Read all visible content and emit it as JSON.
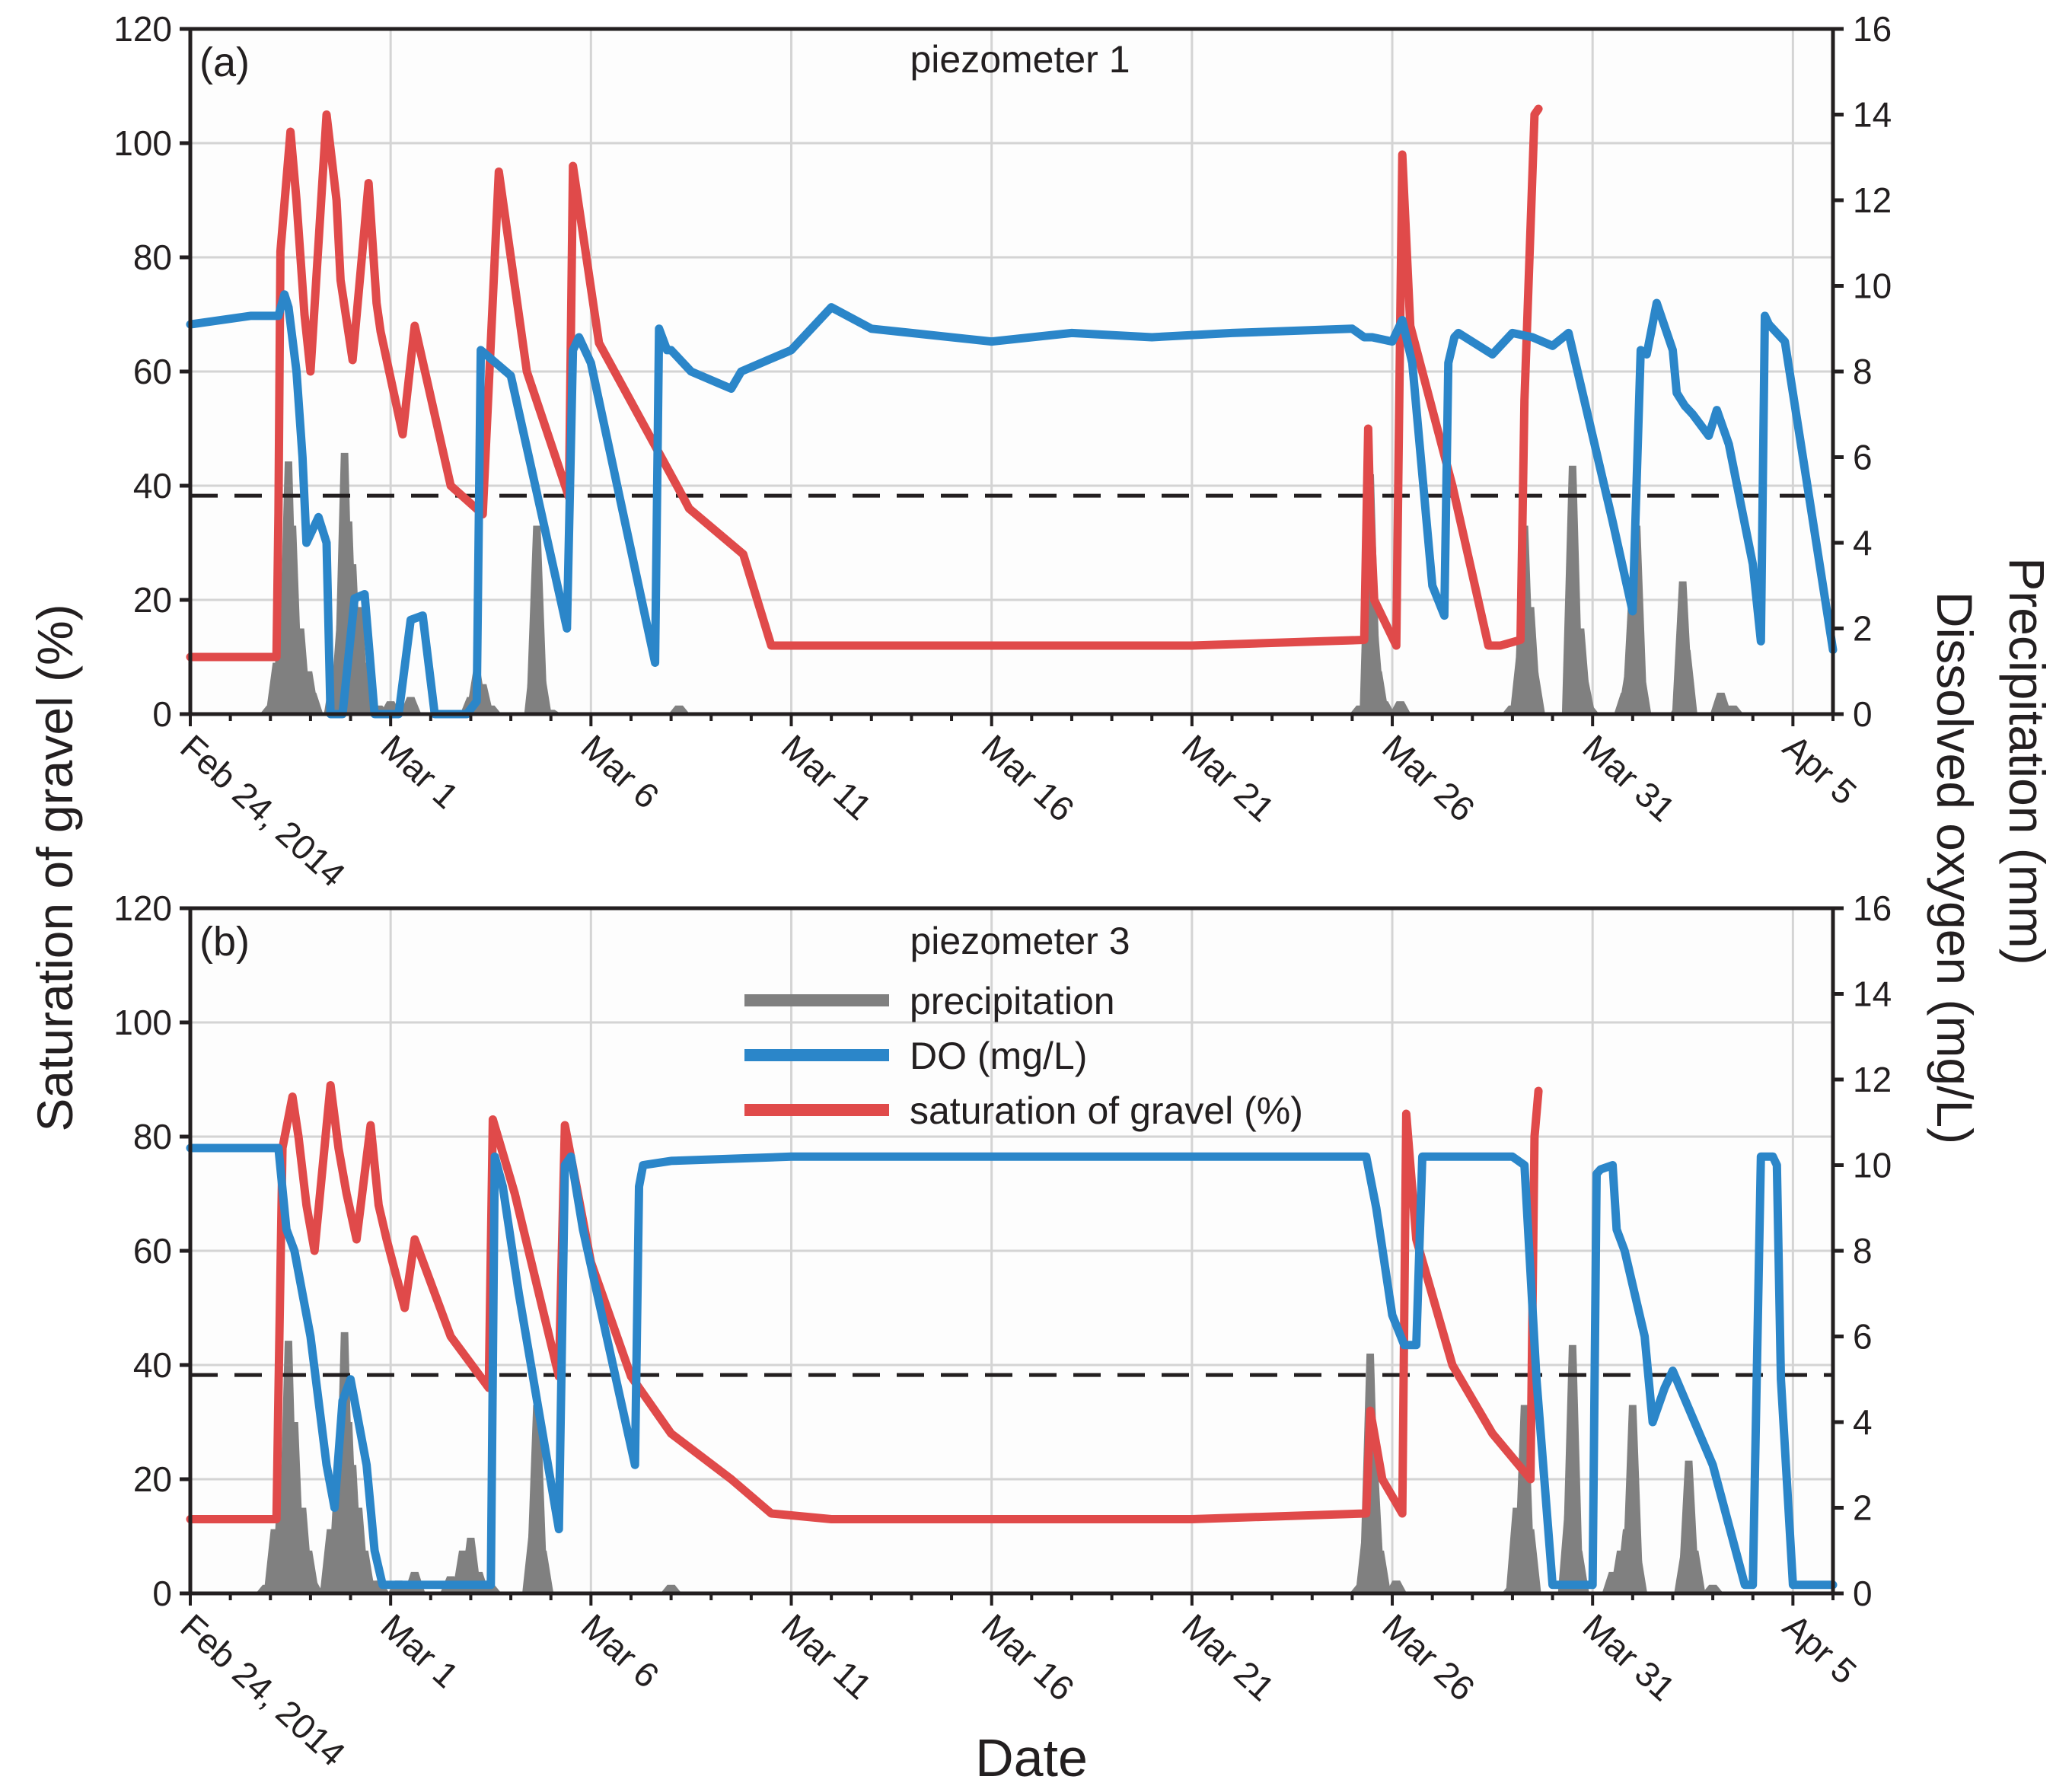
{
  "figure": {
    "xlabel": "Date",
    "ylabel_left": "Saturation of gravel (%)",
    "ylabel_right_outer": "Precipitation (mm)",
    "ylabel_right_inner": "Dissolved oxygen (mg/L)",
    "legend": {
      "precipitation": "precipitation",
      "do": "DO (mg/L)",
      "saturation": "saturation of gravel (%)"
    },
    "colors": {
      "precipitation": "#808080",
      "do": "#2b86c9",
      "saturation": "#e04a4a",
      "grid": "#d4d4d4",
      "axis": "#231f20",
      "plot_bg": "#fdfdfd"
    },
    "x_ticks": [
      "Feb 24, 2014",
      "Mar 1",
      "Mar 6",
      "Mar 11",
      "Mar 16",
      "Mar 21",
      "Mar 26",
      "Mar 31",
      "Apr 5"
    ],
    "y_left_ticks": [
      "0",
      "20",
      "40",
      "60",
      "80",
      "100",
      "120"
    ],
    "y_right_ticks": [
      "0",
      "2",
      "4",
      "6",
      "8",
      "10",
      "12",
      "14",
      "16"
    ]
  },
  "chart_data": [
    {
      "type": "line",
      "panel": "(a)",
      "title": "piezometer 1",
      "xlabel": "Date",
      "x_unit": "days since Feb 24, 2014",
      "xlim": [
        0,
        41
      ],
      "ylabel": "Saturation of gravel (%)",
      "ylim": [
        0,
        120
      ],
      "ylabel_right": "Precipitation (mm) / Dissolved oxygen (mg/L)",
      "ylim_right": [
        0,
        16
      ],
      "do_threshold_mg_per_L": 5.1,
      "series": [
        {
          "name": "saturation of gravel (%)",
          "axis": "left",
          "x": [
            0,
            2.15,
            2.2,
            2.25,
            2.5,
            2.65,
            2.85,
            3.0,
            3.4,
            3.65,
            3.75,
            4.05,
            4.45,
            4.65,
            4.75,
            5.3,
            5.6,
            6.5,
            7.3,
            7.7,
            8.4,
            9.45,
            9.55,
            10.2,
            12.3,
            12.45,
            13.8,
            14.5,
            16,
            20,
            25,
            29.3,
            29.4,
            29.45,
            29.55,
            30.1,
            30.25,
            30.45,
            31.5,
            32.4,
            32.7,
            33.2,
            33.3,
            33.55,
            33.65
          ],
          "values": [
            10,
            10,
            35,
            81,
            102,
            90,
            70,
            60,
            105,
            90,
            76,
            62,
            93,
            72,
            67,
            49,
            68,
            40,
            35,
            95,
            60,
            38,
            96,
            65,
            38,
            36,
            28,
            12,
            12,
            12,
            12,
            13,
            50,
            35,
            20,
            12,
            98,
            68,
            40,
            12,
            12,
            13,
            55,
            105,
            106
          ]
        },
        {
          "name": "DO (mg/L)",
          "axis": "right",
          "x": [
            0,
            1.5,
            2.2,
            2.35,
            2.45,
            2.65,
            2.8,
            2.9,
            3.2,
            3.4,
            3.5,
            3.8,
            4.1,
            4.35,
            4.6,
            5.2,
            5.5,
            5.8,
            6.1,
            6.9,
            7.15,
            7.25,
            8.0,
            9.4,
            9.55,
            9.7,
            10.0,
            11.6,
            11.7,
            11.9,
            12.0,
            12.5,
            13.5,
            13.75,
            14.5,
            15.0,
            16.0,
            17.0,
            18.0,
            20.0,
            22.0,
            24.0,
            26.0,
            29.0,
            29.3,
            29.5,
            30.0,
            30.25,
            30.5,
            31.0,
            31.3,
            31.4,
            31.55,
            31.65,
            32.5,
            33.0,
            33.5,
            34.0,
            34.4,
            35.0,
            35.5,
            36.0,
            36.2,
            36.35,
            36.6,
            37.0,
            37.1,
            37.3,
            37.5,
            37.9,
            38.1,
            38.4,
            39.0,
            39.2,
            39.3,
            39.4,
            39.8,
            41.0
          ],
          "values": [
            9.1,
            9.3,
            9.3,
            9.8,
            9.5,
            8.0,
            6.0,
            4.0,
            4.6,
            4.0,
            0,
            0,
            2.7,
            2.8,
            0,
            0,
            2.2,
            2.3,
            0,
            0,
            0.3,
            8.5,
            7.9,
            2.0,
            8.5,
            8.8,
            8.2,
            1.2,
            9.0,
            8.5,
            8.5,
            8.0,
            7.6,
            8.0,
            8.3,
            8.5,
            9.5,
            9.0,
            8.9,
            8.7,
            8.9,
            8.8,
            8.9,
            9.0,
            8.8,
            8.8,
            8.7,
            9.2,
            8.2,
            3.0,
            2.3,
            8.2,
            8.8,
            8.9,
            8.4,
            8.9,
            8.8,
            8.6,
            8.9,
            6.5,
            4.5,
            2.4,
            8.5,
            8.4,
            9.6,
            8.5,
            7.5,
            7.2,
            7.0,
            6.5,
            7.1,
            6.3,
            3.5,
            1.7,
            9.3,
            9.1,
            8.7,
            1.5
          ]
        },
        {
          "name": "precipitation",
          "axis": "right",
          "x": [
            2.0,
            2.15,
            2.3,
            2.45,
            2.55,
            2.75,
            2.95,
            3.05,
            3.6,
            3.75,
            3.85,
            3.95,
            4.05,
            4.2,
            4.35,
            4.5,
            4.7,
            5.0,
            5.5,
            7.0,
            7.15,
            7.3,
            7.5,
            8.6,
            8.65,
            8.75,
            9.0,
            12.2,
            29.2,
            29.45,
            29.55,
            29.65,
            29.8,
            30.2,
            33.0,
            33.2,
            33.3,
            33.45,
            33.55,
            34.5,
            34.7,
            34.8,
            34.9,
            35.8,
            35.9,
            36.0,
            36.1,
            36.2,
            37.2,
            37.25,
            37.35,
            38.2,
            38.3,
            38.5
          ],
          "values": [
            0.2,
            1.2,
            2.5,
            5.9,
            4.4,
            2.0,
            1.0,
            0.5,
            1.0,
            2.2,
            6.1,
            4.5,
            3.5,
            2.5,
            1.2,
            0.3,
            0.2,
            0.3,
            0.4,
            0.4,
            1.0,
            0.7,
            0.2,
            1.5,
            4.4,
            1.0,
            0.1,
            0.2,
            0.2,
            5.6,
            2.0,
            1.0,
            0.3,
            0.3,
            0.2,
            1.5,
            4.4,
            2.5,
            1.0,
            5.8,
            2.0,
            0.8,
            0.2,
            0.5,
            1.0,
            3.0,
            4.4,
            1.0,
            0.3,
            3.1,
            1.5,
            0.5,
            0.2,
            0.2
          ]
        }
      ]
    },
    {
      "type": "line",
      "panel": "(b)",
      "title": "piezometer 3",
      "xlabel": "Date",
      "x_unit": "days since Feb 24, 2014",
      "xlim": [
        0,
        41
      ],
      "ylabel": "Saturation of gravel (%)",
      "ylim": [
        0,
        120
      ],
      "ylabel_right": "Precipitation (mm) / Dissolved oxygen (mg/L)",
      "ylim_right": [
        0,
        16
      ],
      "do_threshold_mg_per_L": 5.1,
      "series": [
        {
          "name": "saturation of gravel (%)",
          "axis": "left",
          "x": [
            0,
            2.15,
            2.2,
            2.3,
            2.55,
            2.7,
            2.9,
            3.1,
            3.5,
            3.7,
            3.9,
            4.15,
            4.5,
            4.7,
            4.9,
            5.35,
            5.6,
            6.5,
            7.45,
            7.55,
            8.1,
            9.2,
            9.35,
            10.0,
            11.0,
            12.0,
            13.5,
            14.5,
            16.0,
            20.0,
            25.0,
            29.35,
            29.45,
            29.6,
            29.75,
            30.25,
            30.35,
            30.6,
            31.5,
            32.5,
            33.45,
            33.55,
            33.65
          ],
          "values": [
            13,
            13,
            35,
            78,
            87,
            80,
            68,
            60,
            89,
            78,
            70,
            62,
            82,
            68,
            62,
            50,
            62,
            45,
            36,
            83,
            70,
            38,
            82,
            58,
            38,
            28,
            20,
            14,
            13,
            13,
            13,
            14,
            32,
            26,
            20,
            14,
            84,
            62,
            40,
            28,
            20,
            80,
            88
          ]
        },
        {
          "name": "DO (mg/L)",
          "axis": "right",
          "x": [
            0,
            1.5,
            2.2,
            2.4,
            2.6,
            3.0,
            3.4,
            3.6,
            3.8,
            4.0,
            4.4,
            4.6,
            4.8,
            5.0,
            5.2,
            5.5,
            6.0,
            7.5,
            7.6,
            7.8,
            8.2,
            9.2,
            9.35,
            9.5,
            9.8,
            11.1,
            11.2,
            11.3,
            12.0,
            15.0,
            20.0,
            25.0,
            29.0,
            29.3,
            29.35,
            29.6,
            30.0,
            30.3,
            30.6,
            30.75,
            30.85,
            31.0,
            32.0,
            32.5,
            33.0,
            33.3,
            33.6,
            34.0,
            34.2,
            35.0,
            35.1,
            35.2,
            35.5,
            35.6,
            35.8,
            36.3,
            36.5,
            36.8,
            37.0,
            38.0,
            38.8,
            39.0,
            39.2,
            39.5,
            39.6,
            39.7,
            40.0,
            40.5,
            41.0
          ],
          "values": [
            10.4,
            10.4,
            10.4,
            8.5,
            8.0,
            6.0,
            3.0,
            2.0,
            4.5,
            5.0,
            3.0,
            1.0,
            0.2,
            0.2,
            0.2,
            0.2,
            0.2,
            0.2,
            10.2,
            9.5,
            7.0,
            1.5,
            10.0,
            10.2,
            8.5,
            3.0,
            9.5,
            10.0,
            10.1,
            10.2,
            10.2,
            10.2,
            10.2,
            10.2,
            10.2,
            9.0,
            6.5,
            5.8,
            5.8,
            10.2,
            10.2,
            10.2,
            10.2,
            10.2,
            10.2,
            10.0,
            5.0,
            0.2,
            0.2,
            0.2,
            9.8,
            9.9,
            10.0,
            8.5,
            8.0,
            6.0,
            4.0,
            4.8,
            5.2,
            3.0,
            0.2,
            0.2,
            10.2,
            10.2,
            10.0,
            5.0,
            0.2,
            0.2,
            0.2
          ]
        },
        {
          "name": "precipitation",
          "axis": "right",
          "x": [
            1.9,
            2.1,
            2.3,
            2.45,
            2.6,
            2.8,
            2.95,
            3.05,
            3.5,
            3.7,
            3.85,
            3.95,
            4.05,
            4.2,
            4.35,
            4.5,
            4.7,
            5.2,
            5.6,
            6.5,
            6.8,
            7.0,
            7.2,
            7.5,
            8.55,
            8.65,
            8.8,
            12.0,
            29.2,
            29.35,
            29.45,
            29.55,
            29.7,
            30.1,
            33.0,
            33.1,
            33.3,
            33.45,
            34.4,
            34.5,
            34.65,
            35.5,
            35.7,
            35.85,
            36.0,
            36.1,
            37.3,
            37.4,
            37.55,
            38.0
          ],
          "values": [
            0.2,
            1.5,
            3.0,
            5.9,
            4.0,
            2.0,
            1.0,
            0.3,
            1.5,
            3.0,
            6.1,
            4.0,
            3.0,
            2.0,
            1.0,
            0.3,
            0.3,
            0.3,
            0.5,
            0.4,
            1.0,
            1.3,
            0.5,
            0.2,
            1.5,
            4.4,
            1.0,
            0.2,
            0.2,
            1.5,
            5.6,
            3.0,
            1.0,
            0.3,
            0.2,
            2.0,
            4.4,
            1.5,
            2.0,
            5.8,
            1.0,
            0.5,
            1.0,
            1.5,
            4.4,
            1.0,
            1.0,
            3.1,
            1.0,
            0.2
          ]
        }
      ]
    }
  ]
}
